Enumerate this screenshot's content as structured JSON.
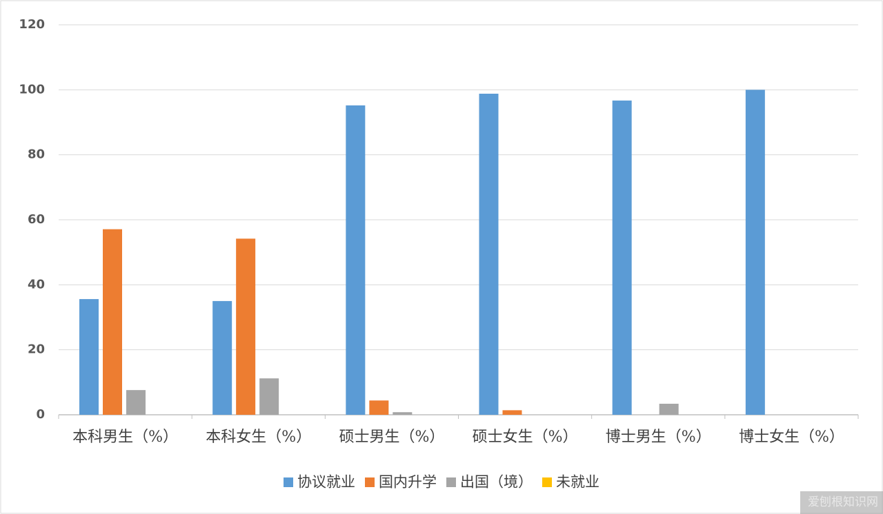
{
  "chart_data": {
    "type": "bar",
    "categories": [
      "本科男生（%）",
      "本科女生（%）",
      "硕士男生（%）",
      "硕士女生（%）",
      "博士男生（%）",
      "博士女生（%）"
    ],
    "series": [
      {
        "name": "协议就业",
        "color": "#5b9bd5",
        "values": [
          35.6,
          35.0,
          95.2,
          98.8,
          96.7,
          100
        ]
      },
      {
        "name": "国内升学",
        "color": "#ed7d31",
        "values": [
          57.1,
          54.2,
          4.4,
          1.4,
          0,
          0
        ]
      },
      {
        "name": "出国（境）",
        "color": "#a5a5a5",
        "values": [
          7.6,
          11.2,
          0.8,
          0,
          3.4,
          0
        ]
      },
      {
        "name": "未就业",
        "color": "#ffc000",
        "values": [
          0,
          0,
          0,
          0,
          0,
          0
        ]
      }
    ],
    "ylim": [
      0,
      120
    ],
    "yticks": [
      0,
      20,
      40,
      60,
      80,
      100,
      120
    ],
    "grid": true,
    "legend": "bottom"
  },
  "watermark": "爱刨根知识网"
}
